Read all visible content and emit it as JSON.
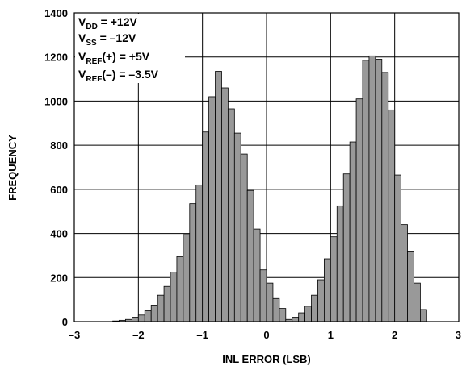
{
  "chart_data": {
    "type": "bar",
    "title": "",
    "xlabel": "INL ERROR (LSB)",
    "ylabel": "FREQUENCY",
    "xlim": [
      -3,
      3
    ],
    "ylim": [
      0,
      1400
    ],
    "xticks": [
      -3,
      -2,
      -1,
      0,
      1,
      2,
      3
    ],
    "xtick_labels": [
      "–3",
      "–2",
      "–1",
      "0",
      "1",
      "2",
      "3"
    ],
    "yticks": [
      0,
      200,
      400,
      600,
      800,
      1000,
      1200,
      1400
    ],
    "ytick_labels": [
      "0",
      "200",
      "400",
      "600",
      "800",
      "1000",
      "1200",
      "1400"
    ],
    "grid": true,
    "bin_width": 0.1,
    "bin_starts": [
      -2.4,
      -2.3,
      -2.2,
      -2.1,
      -2.0,
      -1.9,
      -1.8,
      -1.7,
      -1.6,
      -1.5,
      -1.4,
      -1.3,
      -1.2,
      -1.1,
      -1.0,
      -0.9,
      -0.8,
      -0.7,
      -0.6,
      -0.5,
      -0.4,
      -0.3,
      -0.2,
      -0.1,
      0.0,
      0.1,
      0.2,
      0.3,
      0.4,
      0.5,
      0.6,
      0.7,
      0.8,
      0.9,
      1.0,
      1.1,
      1.2,
      1.3,
      1.4,
      1.5,
      1.6,
      1.7,
      1.8,
      1.9,
      2.0,
      2.1,
      2.2,
      2.3,
      2.4
    ],
    "values": [
      3,
      6,
      10,
      20,
      30,
      50,
      75,
      120,
      160,
      225,
      295,
      395,
      535,
      620,
      860,
      1020,
      1135,
      1060,
      965,
      855,
      760,
      595,
      420,
      235,
      175,
      105,
      60,
      10,
      20,
      40,
      70,
      120,
      190,
      285,
      385,
      525,
      670,
      815,
      1010,
      1185,
      1205,
      1190,
      1130,
      960,
      665,
      440,
      320,
      175,
      55
    ]
  },
  "annotations": {
    "vdd": {
      "main": "V",
      "sub": "DD",
      "rest": " = +12V"
    },
    "vss": {
      "main": "V",
      "sub": "SS",
      "rest": " = –12V"
    },
    "vref_pos": {
      "main": "V",
      "sub": "REF",
      "rest": "(+) = +5V"
    },
    "vref_neg": {
      "main": "V",
      "sub": "REF",
      "rest": "(–) = –3.5V"
    }
  },
  "colors": {
    "bar_fill": "#999999",
    "bar_stroke": "#000000",
    "grid": "#000000",
    "background": "#ffffff"
  }
}
